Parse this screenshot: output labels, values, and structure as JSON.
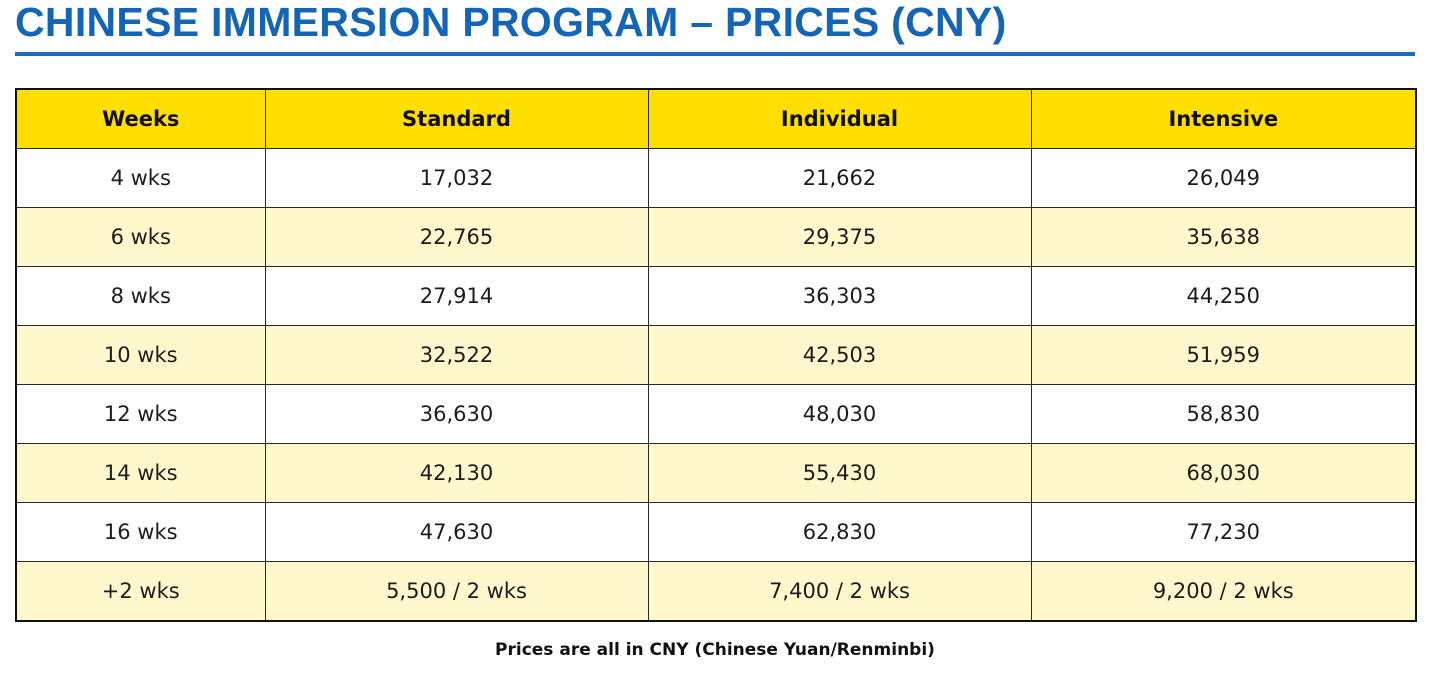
{
  "title": "CHINESE IMMERSION PROGRAM – PRICES (CNY)",
  "table": {
    "headers": [
      "Weeks",
      "Standard",
      "Individual",
      "Intensive"
    ],
    "rows": [
      [
        "4 wks",
        "17,032",
        "21,662",
        "26,049"
      ],
      [
        "6 wks",
        "22,765",
        "29,375",
        "35,638"
      ],
      [
        "8 wks",
        "27,914",
        "36,303",
        "44,250"
      ],
      [
        "10 wks",
        "32,522",
        "42,503",
        "51,959"
      ],
      [
        "12 wks",
        "36,630",
        "48,030",
        "58,830"
      ],
      [
        "14 wks",
        "42,130",
        "55,430",
        "68,030"
      ],
      [
        "16 wks",
        "47,630",
        "62,830",
        "77,230"
      ],
      [
        "+2 wks",
        "5,500 / 2 wks",
        "7,400 / 2 wks",
        "9,200 / 2 wks"
      ]
    ]
  },
  "footnote": "Prices are all in CNY (Chinese Yuan/Renminbi)",
  "colors": {
    "title": "#1565b6",
    "header_bg": "#ffde00",
    "stripe_bg": "#fff8cc"
  }
}
